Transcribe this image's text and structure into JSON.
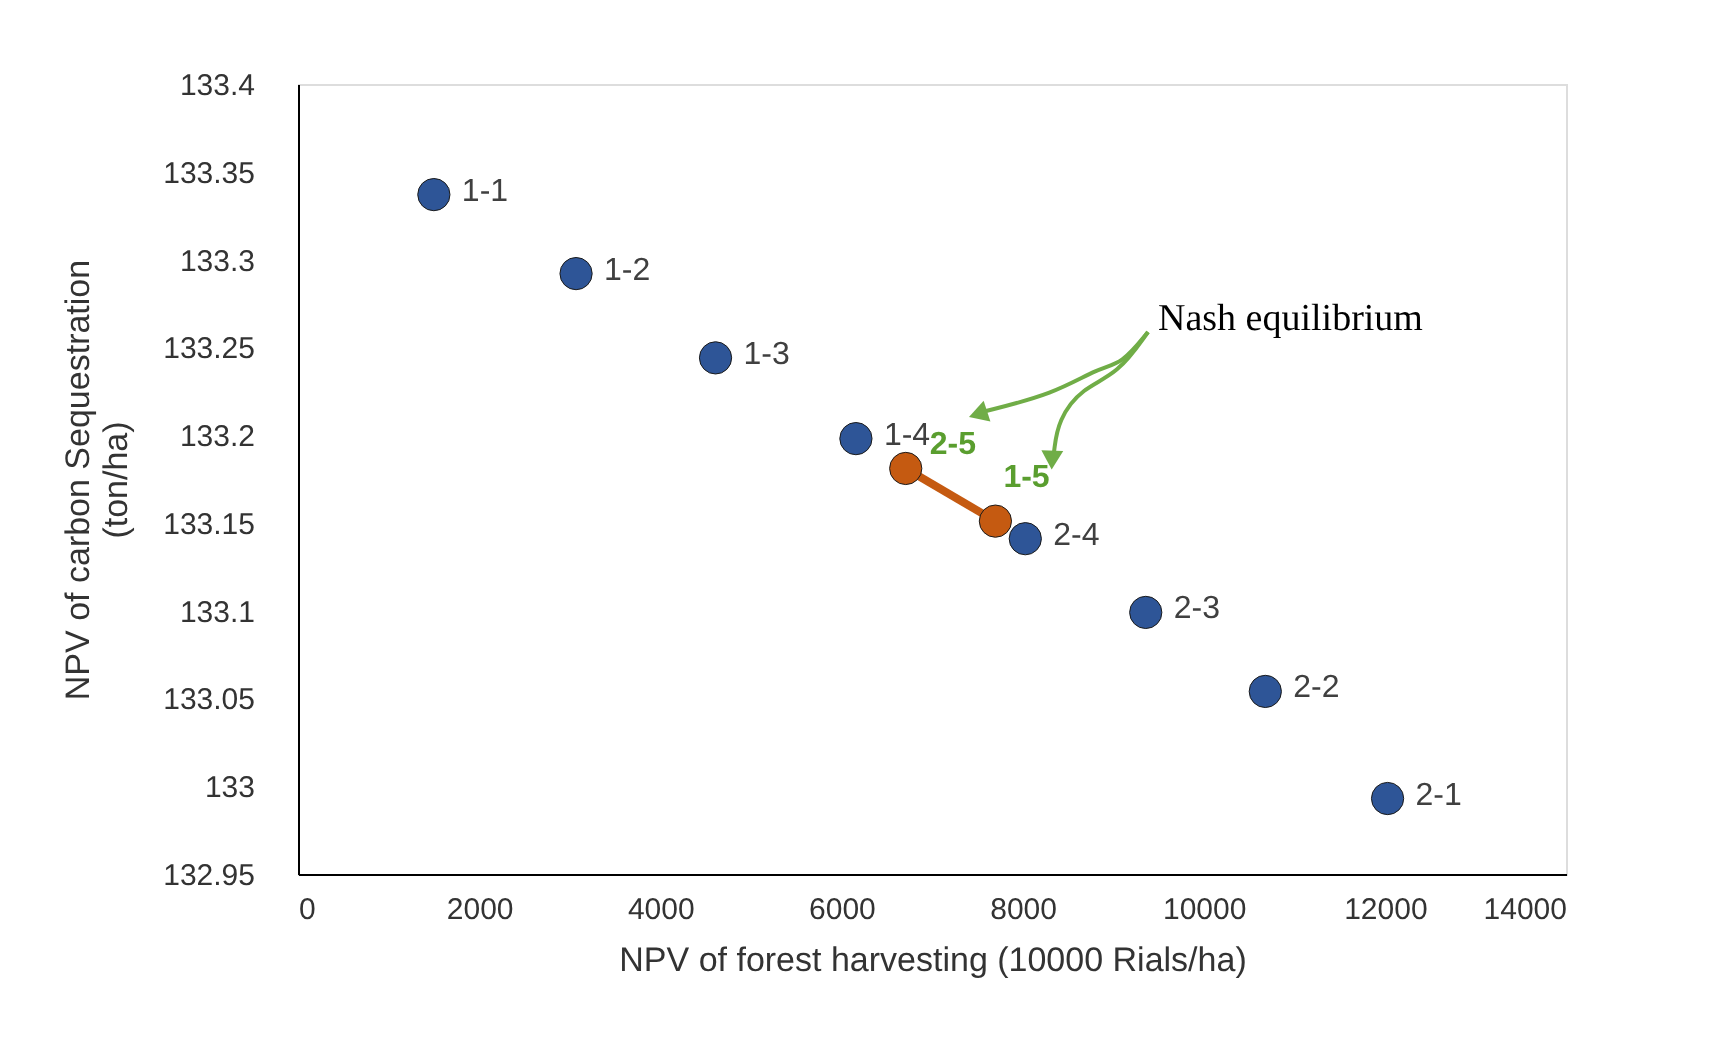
{
  "chart_data": {
    "type": "scatter",
    "xlabel": "NPV of forest harvesting  (10000 Rials/ha)",
    "ylabel": "NPV of carbon Sequestration (ton/ha)",
    "xlim": [
      0,
      14000
    ],
    "xticks": [
      0,
      2000,
      4000,
      6000,
      8000,
      10000,
      12000,
      14000
    ],
    "ylim": [
      132.95,
      133.4
    ],
    "yticks": [
      132.95,
      133,
      133.05,
      133.1,
      133.15,
      133.2,
      133.25,
      133.3,
      133.35,
      133.4
    ],
    "grid": false,
    "legend": false,
    "marker": "circle",
    "series": [
      {
        "type": "scatter",
        "color": "#2e5597",
        "x": [
          1500,
          3070,
          4610,
          6160,
          8030,
          9360,
          10680,
          12030
        ],
        "values": [
          133.337,
          133.292,
          133.244,
          133.198,
          133.141,
          133.099,
          133.054,
          132.993
        ],
        "value_labels": [
          "1-1",
          "1-2",
          "1-3",
          "1-4",
          "2-4",
          "2-3",
          "2-2",
          "2-1"
        ]
      },
      {
        "type": "line",
        "color": "#c55a11",
        "x": [
          6710,
          7700
        ],
        "values": [
          133.181,
          133.151
        ],
        "value_labels": [
          "2-5",
          "1-5"
        ]
      }
    ],
    "annotations": [
      "Nash equilibrium"
    ]
  }
}
